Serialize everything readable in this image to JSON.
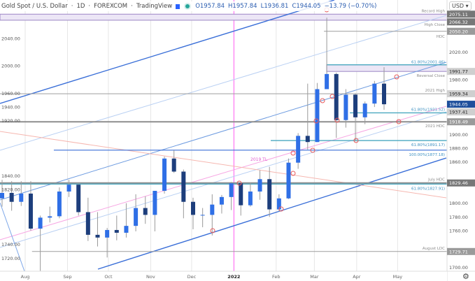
{
  "header": {
    "symbol": "Gold Spot / U.S. Dollar",
    "interval": "1D",
    "exchange": "FOREXCOM",
    "source": "TradingView",
    "ohlc": {
      "open": "O1957.84",
      "high": "H1957.84",
      "low": "L1936.81",
      "close": "C1944.05",
      "change": "−13.79 (−0.70%)"
    }
  },
  "currency_button": "USD ▾",
  "settings_icon": "gear-icon",
  "colors": {
    "up": "#2f6fe6",
    "down": "#1d3e7c",
    "wick": "#9a9a9a",
    "last_price": "#1e4f9c",
    "year_marker": "#ff5cf0"
  },
  "chart_data": {
    "type": "candlestick",
    "title": "Gold Spot / U.S. Dollar · 1D · FOREXCOM",
    "ylim": [
      1700,
      2080
    ],
    "y_ticks": [
      2040,
      2020,
      2000,
      1980,
      1960,
      1940,
      1920,
      1900,
      1880,
      1860,
      1840,
      1820,
      1800,
      1780,
      1760,
      1740,
      1720,
      1700
    ],
    "x_ticks": [
      {
        "label": "Aug",
        "date": "2021-08-01"
      },
      {
        "label": "Sep",
        "date": "2021-09-01"
      },
      {
        "label": "Oct",
        "date": "2021-10-01"
      },
      {
        "label": "Nov",
        "date": "2021-11-01"
      },
      {
        "label": "Dec",
        "date": "2021-12-01"
      },
      {
        "label": "2022",
        "date": "2022-01-01",
        "bold": true
      },
      {
        "label": "Feb",
        "date": "2022-02-01"
      },
      {
        "label": "Mar",
        "date": "2022-03-01"
      },
      {
        "label": "Apr",
        "date": "2022-04-01"
      },
      {
        "label": "May",
        "date": "2022-05-01"
      }
    ],
    "candles_weekly_approx": [
      [
        "2021-07-12",
        1807,
        1834,
        1795,
        1815
      ],
      [
        "2021-07-19",
        1815,
        1832,
        1789,
        1802
      ],
      [
        "2021-07-26",
        1802,
        1832,
        1796,
        1814
      ],
      [
        "2021-08-02",
        1814,
        1832,
        1760,
        1763
      ],
      [
        "2021-08-09",
        1763,
        1782,
        1690,
        1779
      ],
      [
        "2021-08-16",
        1779,
        1795,
        1772,
        1781
      ],
      [
        "2021-08-23",
        1781,
        1823,
        1778,
        1817
      ],
      [
        "2021-08-30",
        1817,
        1834,
        1809,
        1827
      ],
      [
        "2021-09-06",
        1827,
        1828,
        1782,
        1787
      ],
      [
        "2021-09-13",
        1787,
        1808,
        1745,
        1754
      ],
      [
        "2021-09-20",
        1754,
        1787,
        1737,
        1750
      ],
      [
        "2021-09-27",
        1750,
        1764,
        1721,
        1761
      ],
      [
        "2021-10-04",
        1761,
        1782,
        1746,
        1757
      ],
      [
        "2021-10-11",
        1757,
        1800,
        1750,
        1767
      ],
      [
        "2021-10-18",
        1767,
        1813,
        1759,
        1793
      ],
      [
        "2021-10-25",
        1793,
        1810,
        1770,
        1783
      ],
      [
        "2021-11-01",
        1783,
        1818,
        1759,
        1818
      ],
      [
        "2021-11-08",
        1818,
        1868,
        1814,
        1865
      ],
      [
        "2021-11-15",
        1865,
        1877,
        1844,
        1846
      ],
      [
        "2021-11-22",
        1846,
        1849,
        1778,
        1802
      ],
      [
        "2021-11-29",
        1802,
        1808,
        1762,
        1783
      ],
      [
        "2021-12-06",
        1783,
        1793,
        1765,
        1783
      ],
      [
        "2021-12-13",
        1783,
        1813,
        1753,
        1798
      ],
      [
        "2021-12-20",
        1798,
        1812,
        1785,
        1809
      ],
      [
        "2021-12-27",
        1809,
        1831,
        1790,
        1829
      ],
      [
        "2022-01-03",
        1829,
        1831,
        1782,
        1797
      ],
      [
        "2022-01-10",
        1797,
        1830,
        1795,
        1817
      ],
      [
        "2022-01-17",
        1817,
        1848,
        1805,
        1835
      ],
      [
        "2022-01-24",
        1835,
        1853,
        1780,
        1791
      ],
      [
        "2022-01-31",
        1791,
        1813,
        1788,
        1807
      ],
      [
        "2022-02-07",
        1807,
        1865,
        1806,
        1859
      ],
      [
        "2022-02-14",
        1859,
        1902,
        1850,
        1898
      ],
      [
        "2022-02-21",
        1898,
        1974,
        1878,
        1889
      ],
      [
        "2022-02-28",
        1889,
        1975,
        1889,
        1966
      ],
      [
        "2022-03-07",
        1966,
        2070,
        1973,
        1988
      ],
      [
        "2022-03-14",
        1988,
        1990,
        1895,
        1921
      ],
      [
        "2022-03-21",
        1921,
        1966,
        1910,
        1958
      ],
      [
        "2022-03-28",
        1958,
        1960,
        1890,
        1925
      ],
      [
        "2022-04-04",
        1925,
        1948,
        1915,
        1945
      ],
      [
        "2022-04-11",
        1945,
        1978,
        1940,
        1974
      ],
      [
        "2022-04-18",
        1974,
        1998,
        1936,
        1944
      ]
    ],
    "levels": [
      {
        "price": 2075.11,
        "label": "Record High",
        "badge": "2075.11",
        "kind": "zone-top",
        "from": "2021-07-10"
      },
      {
        "price": 2066.32,
        "label": "High Close",
        "badge": "2066.32",
        "kind": "zone-bottom",
        "from": "2021-07-10"
      },
      {
        "price": 2050.2,
        "label": "HDC",
        "badge": "2050.20",
        "kind": "grey",
        "from": "2022-03-08"
      },
      {
        "price": 2001.46,
        "label": "61.80%(2001.46)",
        "kind": "fib",
        "from": "2022-03-10"
      },
      {
        "price": 1991.77,
        "label": "Reversal Close",
        "badge": "1991.77",
        "kind": "zone-bottom2",
        "from": "2022-03-10"
      },
      {
        "price": 1959.34,
        "label": "2021 High",
        "badge": "1959.34",
        "kind": "grey",
        "from": "2021-07-10"
      },
      {
        "price": 1931.52,
        "label": "61.80%(1931.52)",
        "kind": "fib",
        "from": "2022-03-27"
      },
      {
        "price": 1937.41,
        "badge": "1937.41",
        "kind": "badge-only"
      },
      {
        "price": 1918.49,
        "label": "2021 HDC",
        "badge": "1918.49",
        "kind": "grey-thick",
        "from": "2021-07-10"
      },
      {
        "price": 1891.17,
        "label": "61.80%(1891.17)",
        "kind": "fib",
        "from": "2022-01-28"
      },
      {
        "price": 1877.18,
        "label": "100.00%(1877.18)",
        "kind": "blue",
        "from": "2021-08-22"
      },
      {
        "price": 1829.46,
        "label": "July HDC",
        "badge": "1829.46",
        "kind": "grey-thick",
        "from": "2021-07-10"
      },
      {
        "price": 1827.91,
        "label": "61.80%(1827.91)",
        "kind": "fib",
        "from": "2021-07-10"
      },
      {
        "price": 1729.71,
        "label": "August LDC",
        "badge": "1729.71",
        "kind": "grey",
        "from": "2021-08-06"
      }
    ],
    "trendline_label": "2019 TL",
    "last_price": "1944.05"
  }
}
